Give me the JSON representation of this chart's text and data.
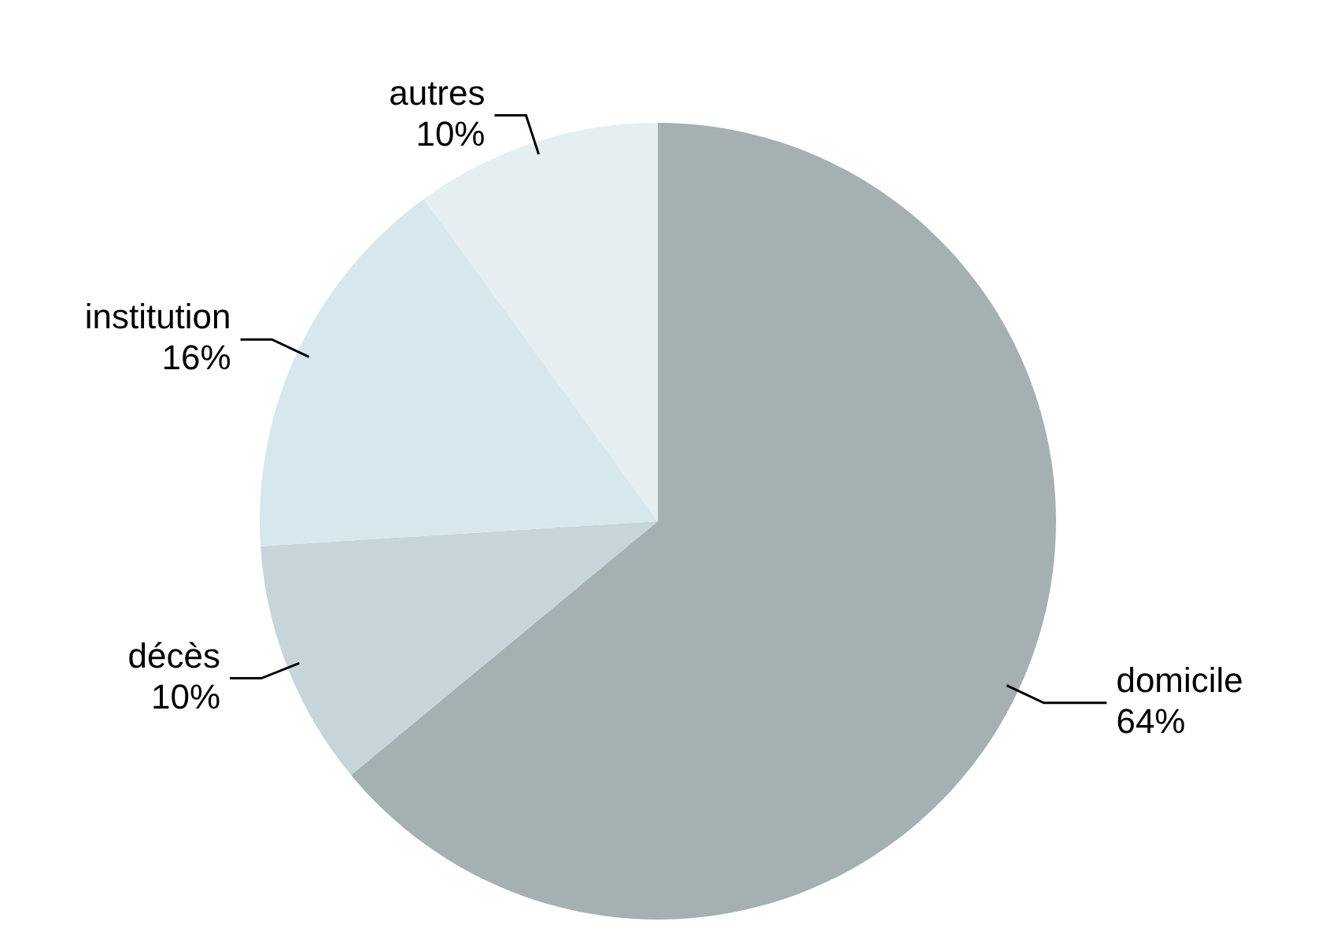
{
  "chart_data": {
    "type": "pie",
    "categories": [
      "domicile",
      "décès",
      "institution",
      "autres"
    ],
    "values": [
      64,
      10,
      16,
      10
    ],
    "value_labels": [
      "64%",
      "10%",
      "16%",
      "10%"
    ],
    "colors": [
      "#a4b0b2",
      "#c6d5da",
      "#d6e7ed",
      "#e5eef0"
    ],
    "legend": false
  }
}
